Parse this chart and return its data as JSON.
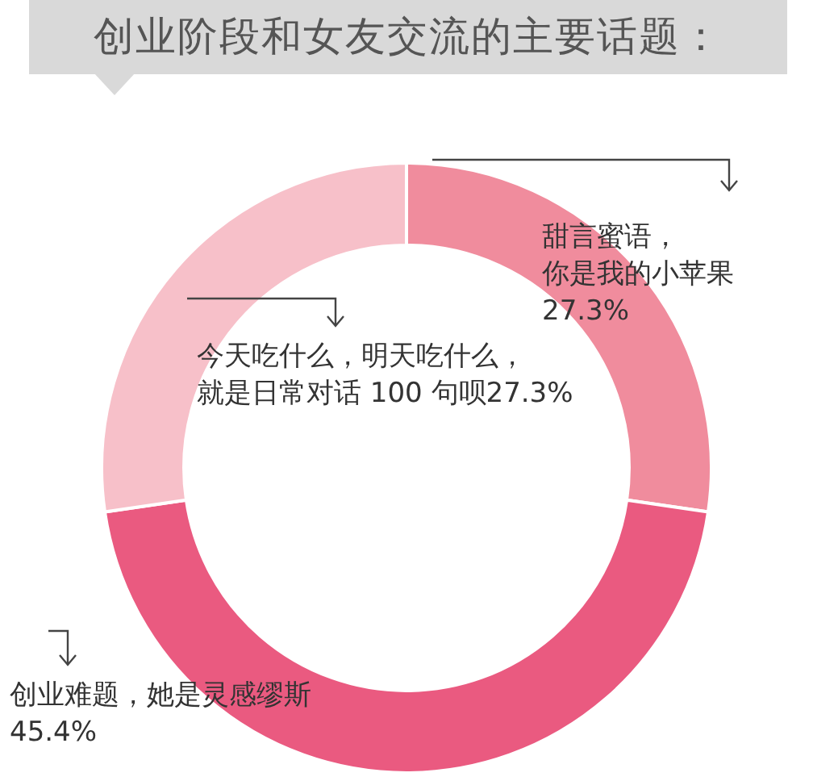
{
  "chart_data": {
    "type": "donut",
    "title": "创业阶段和女友交流的主要话题：",
    "categories": [
      "甜言蜜语，你是我的小苹果",
      "创业难题，她是灵感缪斯",
      "今天吃什么，明天吃什么，就是日常对话 100 句呗"
    ],
    "values": [
      27.3,
      45.4,
      27.3
    ],
    "value_labels": [
      "27.3%",
      "45.4%",
      "27.3%"
    ],
    "colors": [
      "#f08c9d",
      "#ea5a80",
      "#f7c0c9"
    ],
    "legend": false
  }
}
